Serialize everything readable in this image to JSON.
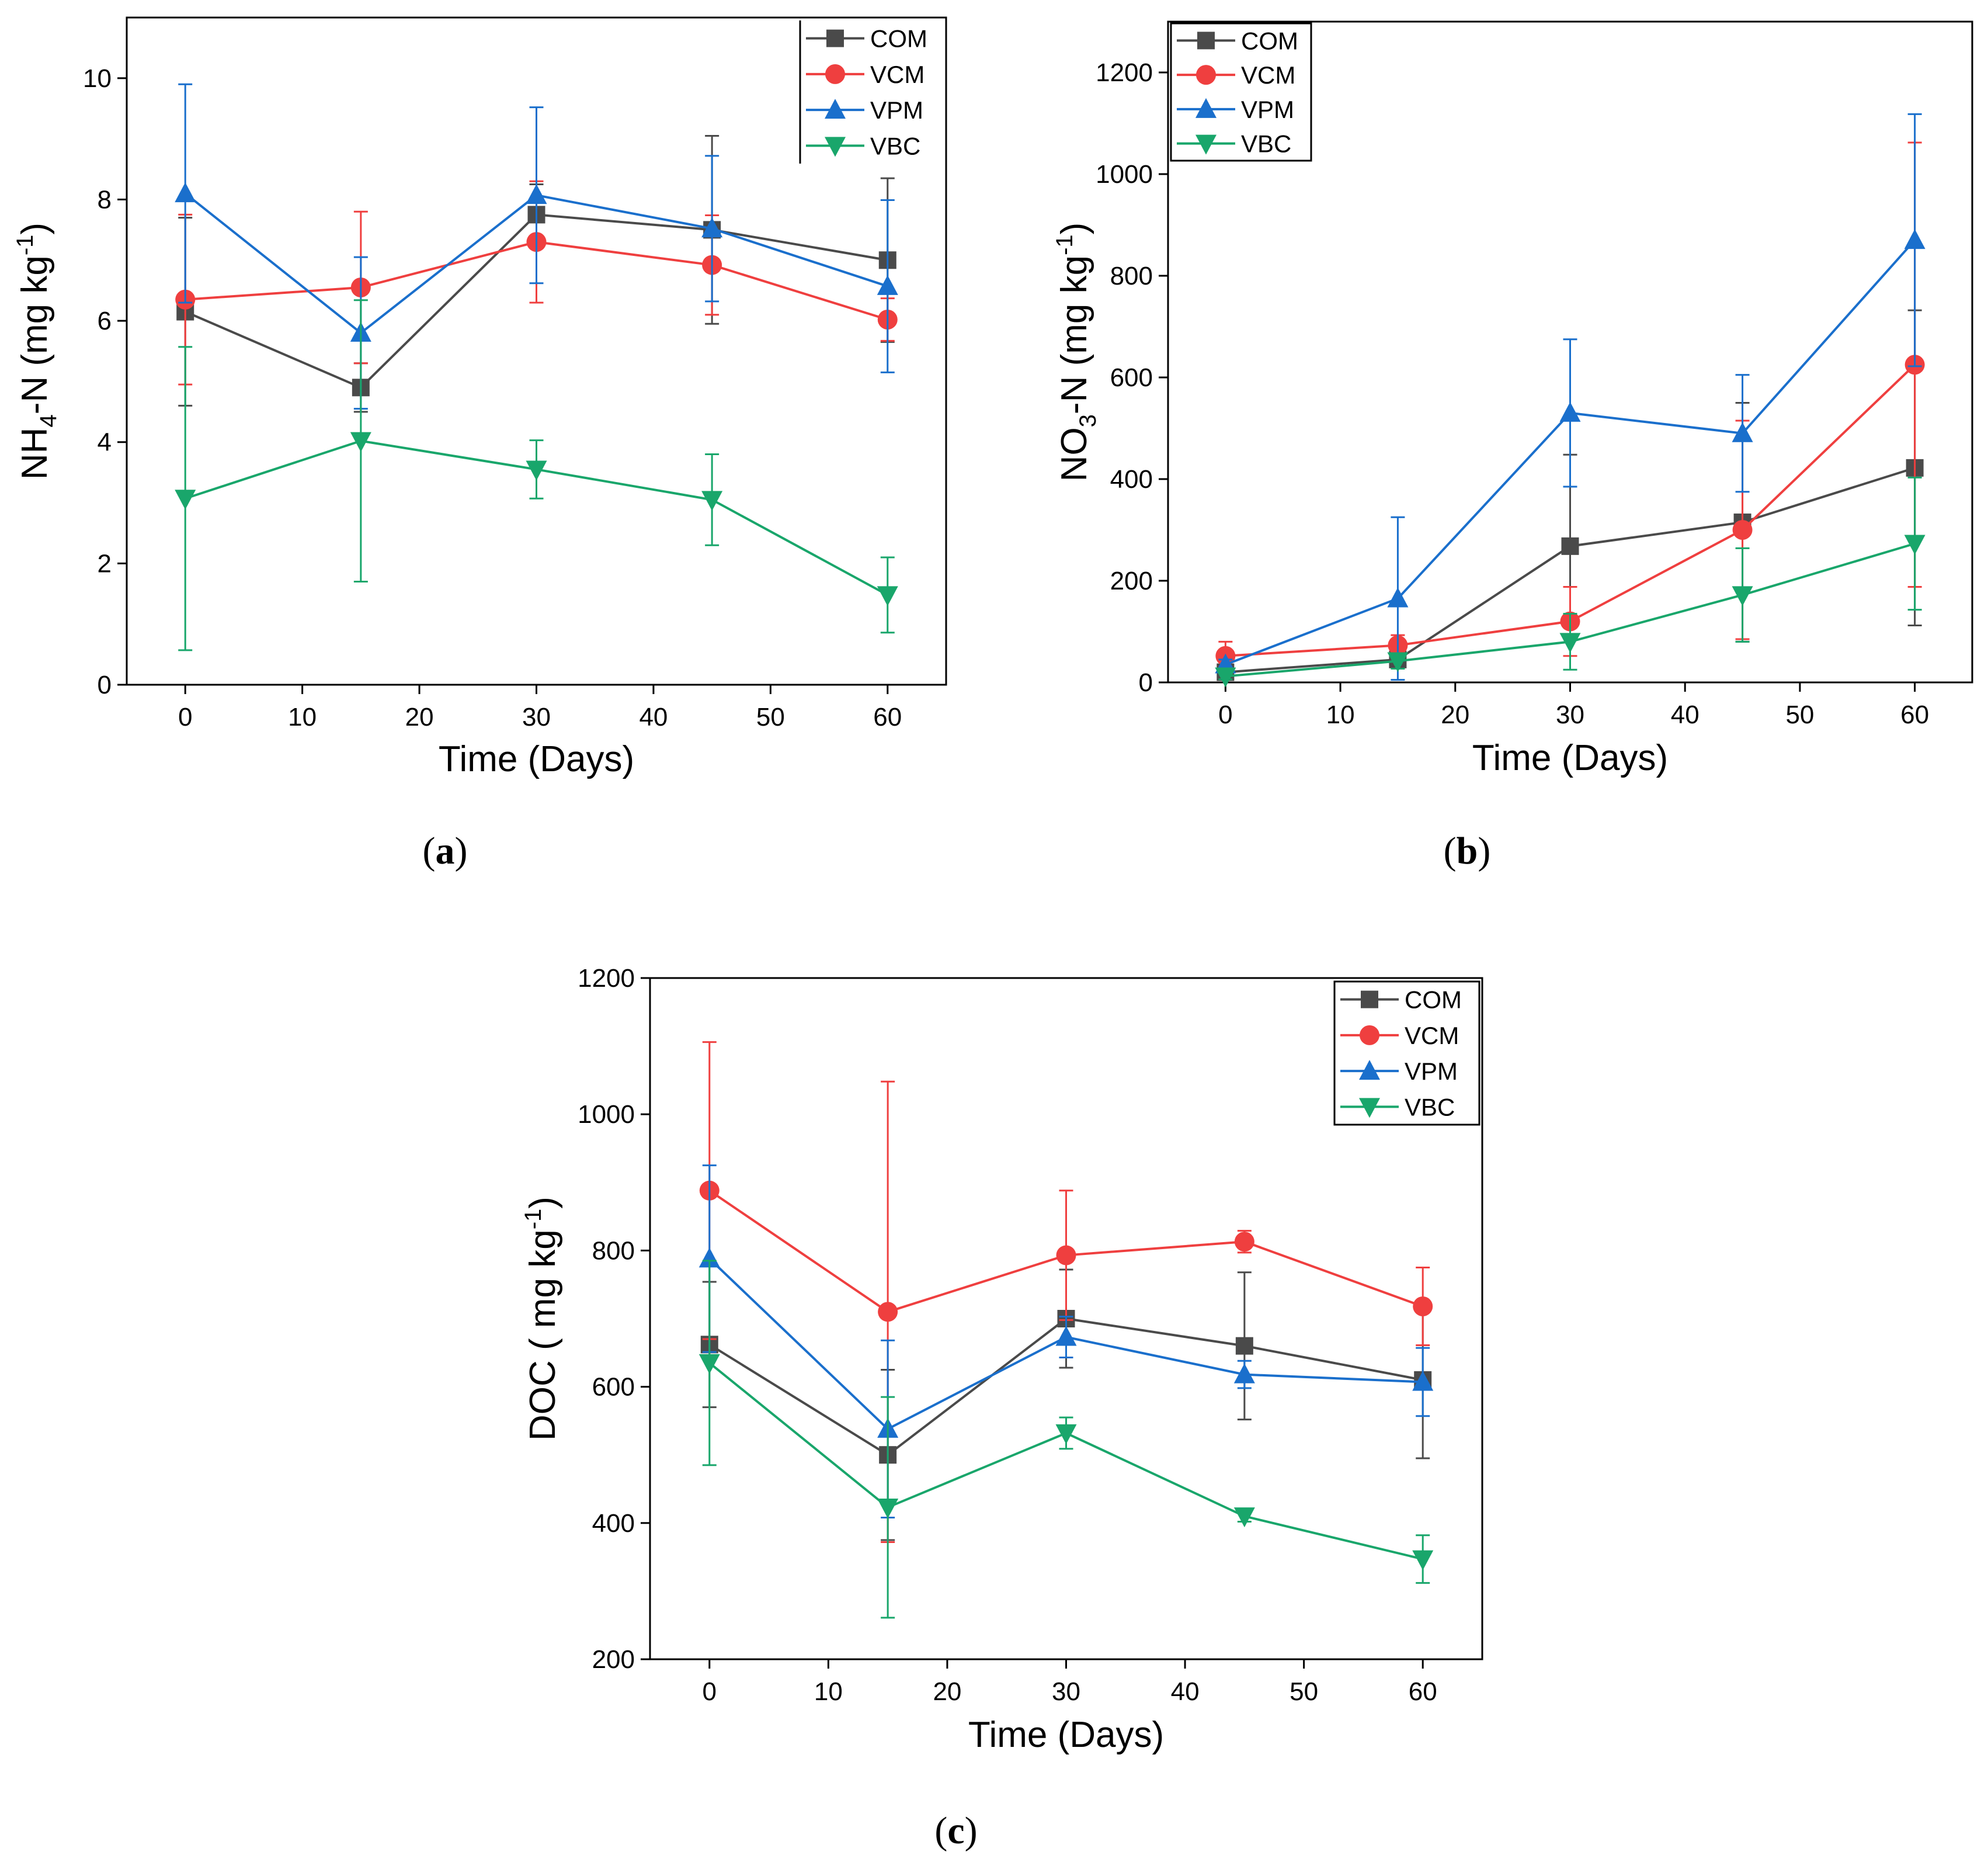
{
  "colors": {
    "COM": "#4a4a4a",
    "VCM": "#ef3f3f",
    "VPM": "#1a6fcc",
    "VBC": "#19a66b"
  },
  "chart_data": [
    {
      "type": "line",
      "panel": "a",
      "panel_label": "a",
      "title": "",
      "xlabel": "Time (Days)",
      "ylabel": {
        "main": "NH",
        "sub": "4",
        "mid": "-N (mg kg",
        "sup": "-1",
        "end": ")"
      },
      "xlim": [
        -5,
        65
      ],
      "ylim": [
        0,
        11
      ],
      "xticks": [
        0,
        10,
        20,
        30,
        40,
        50,
        60
      ],
      "yticks": [
        0,
        2,
        4,
        6,
        8,
        10
      ],
      "legend_position": "top-right",
      "x": [
        0,
        15,
        30,
        45,
        60
      ],
      "series": [
        {
          "name": "COM",
          "marker": "square",
          "values": [
            6.15,
            4.9,
            7.75,
            7.5,
            7.0
          ],
          "errors": [
            1.55,
            0.4,
            0.5,
            1.55,
            1.35
          ]
        },
        {
          "name": "VCM",
          "marker": "circle",
          "values": [
            6.35,
            6.55,
            7.3,
            6.92,
            6.02
          ],
          "errors": [
            1.4,
            1.25,
            1.0,
            0.82,
            0.35
          ]
        },
        {
          "name": "VPM",
          "marker": "triangle-up",
          "values": [
            8.1,
            5.8,
            8.07,
            7.52,
            6.57
          ],
          "errors": [
            1.8,
            1.25,
            1.45,
            1.2,
            1.42
          ]
        },
        {
          "name": "VBC",
          "marker": "triangle-down",
          "values": [
            3.07,
            4.02,
            3.55,
            3.05,
            1.48
          ],
          "errors": [
            2.5,
            2.32,
            0.48,
            0.75,
            0.62
          ]
        }
      ]
    },
    {
      "type": "line",
      "panel": "b",
      "panel_label": "b",
      "title": "",
      "xlabel": "Time (Days)",
      "ylabel": {
        "main": "NO",
        "sub": "3",
        "mid": "-N (mg kg",
        "sup": "-1",
        "end": ")"
      },
      "xlim": [
        -5,
        65
      ],
      "ylim": [
        0,
        1300
      ],
      "xticks": [
        0,
        10,
        20,
        30,
        40,
        50,
        60
      ],
      "yticks": [
        0,
        200,
        400,
        600,
        800,
        1000,
        1200
      ],
      "legend_position": "top-left",
      "x": [
        0,
        15,
        30,
        45,
        60
      ],
      "series": [
        {
          "name": "COM",
          "marker": "square",
          "values": [
            20,
            45,
            268,
            315,
            422
          ],
          "errors": [
            8,
            12,
            180,
            235,
            310
          ]
        },
        {
          "name": "VCM",
          "marker": "circle",
          "values": [
            52,
            73,
            120,
            300,
            625
          ],
          "errors": [
            28,
            20,
            68,
            215,
            437
          ]
        },
        {
          "name": "VPM",
          "marker": "triangle-up",
          "values": [
            35,
            165,
            530,
            490,
            870
          ],
          "errors": [
            10,
            160,
            145,
            115,
            248
          ]
        },
        {
          "name": "VBC",
          "marker": "triangle-down",
          "values": [
            12,
            42,
            80,
            172,
            273
          ],
          "errors": [
            6,
            15,
            55,
            92,
            130
          ]
        }
      ]
    },
    {
      "type": "line",
      "panel": "c",
      "panel_label": "c",
      "title": "",
      "xlabel": "Time (Days)",
      "ylabel": {
        "main": "DOC ( mg kg",
        "sup": "-1",
        "end": ")"
      },
      "xlim": [
        -5,
        65
      ],
      "ylim": [
        200,
        1200
      ],
      "xticks": [
        0,
        10,
        20,
        30,
        40,
        50,
        60
      ],
      "yticks": [
        200,
        400,
        600,
        800,
        1000,
        1200
      ],
      "legend_position": "top-right",
      "x": [
        0,
        15,
        30,
        45,
        60
      ],
      "series": [
        {
          "name": "COM",
          "marker": "square",
          "values": [
            662,
            500,
            700,
            660,
            610
          ],
          "errors": [
            92,
            125,
            72,
            108,
            115
          ]
        },
        {
          "name": "VCM",
          "marker": "circle",
          "values": [
            888,
            710,
            793,
            813,
            718
          ],
          "errors": [
            218,
            338,
            95,
            16,
            57
          ]
        },
        {
          "name": "VPM",
          "marker": "triangle-up",
          "values": [
            788,
            538,
            673,
            618,
            607
          ],
          "errors": [
            137,
            130,
            30,
            20,
            50
          ]
        },
        {
          "name": "VBC",
          "marker": "triangle-down",
          "values": [
            635,
            423,
            532,
            410,
            347
          ],
          "errors": [
            150,
            162,
            23,
            8,
            35
          ]
        }
      ]
    }
  ]
}
